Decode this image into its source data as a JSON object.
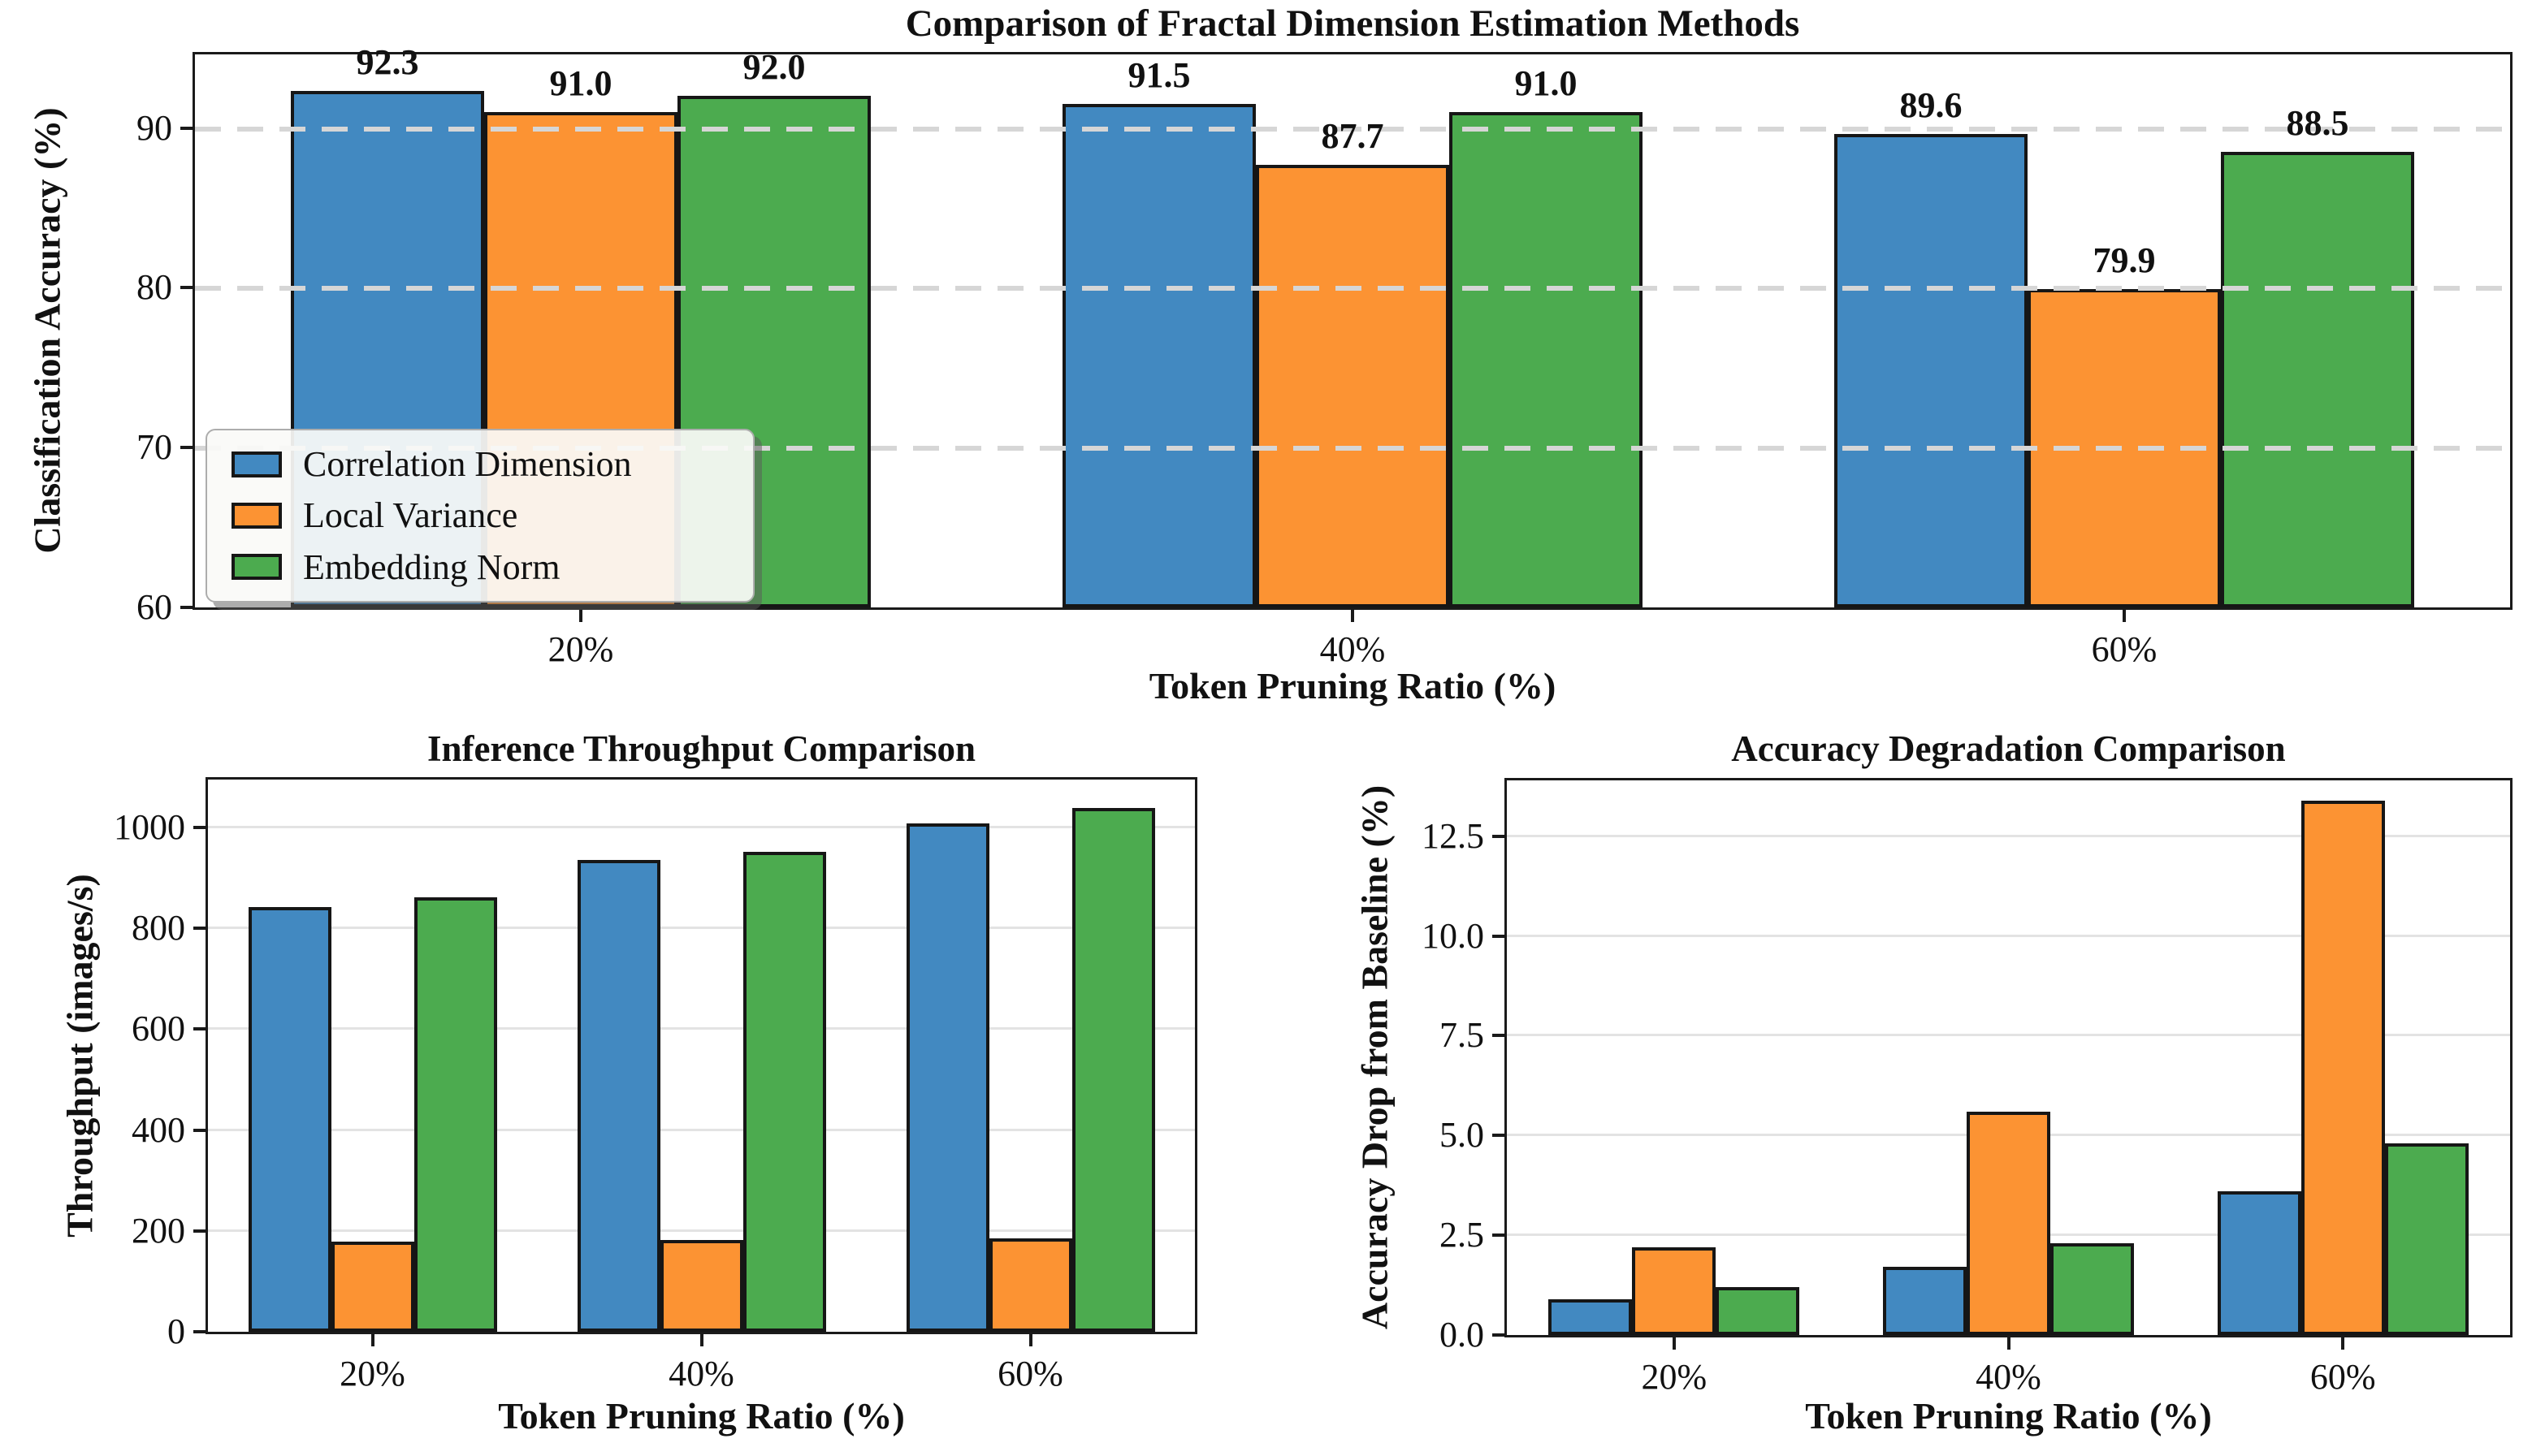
{
  "chart_data": [
    {
      "type": "bar",
      "title": "Comparison of Fractal Dimension Estimation Methods",
      "xlabel": "Token Pruning Ratio (%)",
      "ylabel": "Classification Accuracy (%)",
      "categories": [
        "20%",
        "40%",
        "60%"
      ],
      "series": [
        {
          "name": "Correlation Dimension",
          "color": "#4289c1",
          "values": [
            92.3,
            91.5,
            89.6
          ]
        },
        {
          "name": "Local Variance",
          "color": "#fc9333",
          "values": [
            91.0,
            87.7,
            79.9
          ]
        },
        {
          "name": "Embedding Norm",
          "color": "#4cab4f",
          "values": [
            92.0,
            91.0,
            88.5
          ]
        }
      ],
      "ylim": [
        60,
        94.6
      ],
      "ytick_values": [
        60,
        70,
        80,
        90
      ],
      "ytick_labels": [
        "60",
        "70",
        "80",
        "90"
      ],
      "grid": "dashed",
      "grid_above_bars": true,
      "bar_value_labels": true,
      "value_label_decimals": 1,
      "legend": {
        "visible": true,
        "position": "lower left"
      }
    },
    {
      "type": "bar",
      "title": "Inference Throughput Comparison",
      "xlabel": "Token Pruning Ratio (%)",
      "ylabel": "Throughput (images/s)",
      "categories": [
        "20%",
        "40%",
        "60%"
      ],
      "series": [
        {
          "name": "Correlation Dimension",
          "color": "#4289c1",
          "values": [
            842,
            936,
            1008
          ]
        },
        {
          "name": "Local Variance",
          "color": "#fc9333",
          "values": [
            178,
            182,
            185
          ]
        },
        {
          "name": "Embedding Norm",
          "color": "#4cab4f",
          "values": [
            861,
            951,
            1038
          ]
        }
      ],
      "ylim": [
        0,
        1095
      ],
      "ytick_values": [
        0,
        200,
        400,
        600,
        800,
        1000
      ],
      "ytick_labels": [
        "0",
        "200",
        "400",
        "600",
        "800",
        "1000"
      ],
      "grid": "solid",
      "grid_above_bars": false,
      "bar_value_labels": false,
      "legend": {
        "visible": false
      }
    },
    {
      "type": "bar",
      "title": "Accuracy Degradation Comparison",
      "xlabel": "Token Pruning Ratio (%)",
      "ylabel": "Accuracy Drop from Baseline (%)",
      "categories": [
        "20%",
        "40%",
        "60%"
      ],
      "series": [
        {
          "name": "Correlation Dimension",
          "color": "#4289c1",
          "values": [
            0.9,
            1.7,
            3.6
          ]
        },
        {
          "name": "Local Variance",
          "color": "#fc9333",
          "values": [
            2.2,
            5.6,
            13.4
          ]
        },
        {
          "name": "Embedding Norm",
          "color": "#4cab4f",
          "values": [
            1.2,
            2.3,
            4.8
          ]
        }
      ],
      "ylim": [
        0,
        13.9
      ],
      "ytick_values": [
        0,
        2.5,
        5,
        7.5,
        10,
        12.5
      ],
      "ytick_labels": [
        "0.0",
        "2.5",
        "5.0",
        "7.5",
        "10.0",
        "12.5"
      ],
      "grid": "solid",
      "grid_above_bars": false,
      "bar_value_labels": false,
      "legend": {
        "visible": false
      }
    }
  ],
  "style": {
    "bar_edge_color": "#161616",
    "grid_dashed_color": "#d6d6d6",
    "grid_solid_color": "#e3e3e3",
    "axis_color": "#1a1a1a",
    "legend_background": "#fafaf8",
    "legend_border": "#adadad"
  }
}
